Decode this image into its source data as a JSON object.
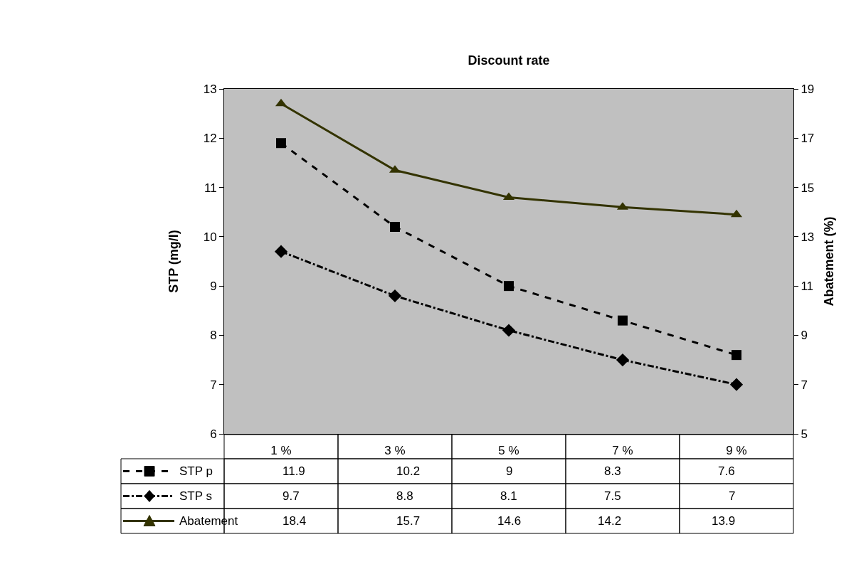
{
  "chart_data": {
    "type": "line",
    "title": "Discount rate",
    "ylabel": "STP (mg/l)",
    "y2label": "Abatement (%)",
    "categories": [
      "1 %",
      "3 %",
      "5 %",
      "7 %",
      "9 %"
    ],
    "series": [
      {
        "name": "STP p",
        "color": "#000000",
        "values": [
          11.9,
          10.2,
          9,
          8.3,
          7.6
        ],
        "marker": "square",
        "line_style": "dashed"
      },
      {
        "name": "STP s",
        "color": "#000000",
        "values": [
          9.7,
          8.8,
          8.1,
          7.5,
          7
        ],
        "marker": "diamond",
        "line_style": "dashdot"
      },
      {
        "name": "Abatement",
        "color": "#333300",
        "values": [
          18.4,
          15.7,
          14.6,
          14.2,
          13.9
        ],
        "marker": "triangle",
        "line_style": "solid",
        "axis": "y2"
      }
    ],
    "ylim": [
      6,
      13
    ],
    "yticks": [
      6,
      7,
      8,
      9,
      10,
      11,
      12,
      13
    ],
    "y2lim": [
      5,
      19
    ],
    "y2ticks": [
      5,
      7,
      9,
      11,
      13,
      15,
      17,
      19
    ],
    "grid": false,
    "data_labels": true,
    "legend": "bottom"
  }
}
